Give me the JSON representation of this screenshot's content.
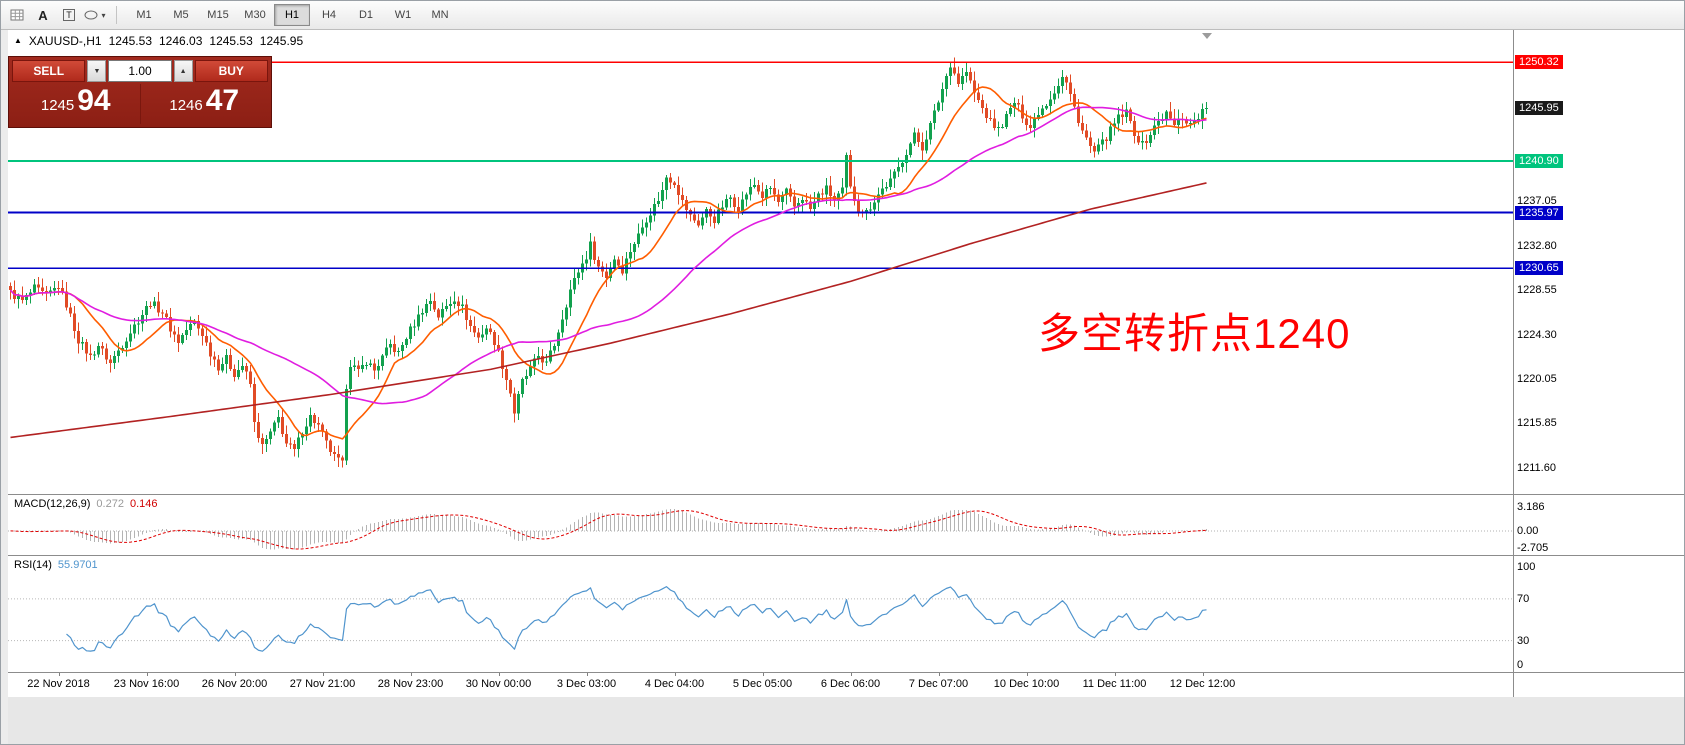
{
  "toolbar": {
    "tools": [
      {
        "name": "tick-grid",
        "glyph": ""
      },
      {
        "name": "insert-text",
        "glyph": "A"
      },
      {
        "name": "insert-label",
        "glyph": "T"
      },
      {
        "name": "shapes",
        "glyph": ""
      }
    ],
    "dropdown_glyph": "▾",
    "timeframes": [
      {
        "label": "M1"
      },
      {
        "label": "M5"
      },
      {
        "label": "M15"
      },
      {
        "label": "M30"
      },
      {
        "label": "H1"
      },
      {
        "label": "H4"
      },
      {
        "label": "D1"
      },
      {
        "label": "W1"
      },
      {
        "label": "MN"
      }
    ],
    "active_timeframe": "H1"
  },
  "chart_header": {
    "marker": "▲",
    "symbol_period": "XAUUSD-,H1",
    "open": "1245.53",
    "high": "1246.03",
    "low": "1245.53",
    "close": "1245.95"
  },
  "trade_panel": {
    "sell_label": "SELL",
    "buy_label": "BUY",
    "lot_value": "1.00",
    "spin_down_glyph": "▼",
    "spin_up_glyph": "▲",
    "bid": {
      "small": "1245",
      "big": "94"
    },
    "ask": {
      "small": "1246",
      "big": "47"
    }
  },
  "annotation": {
    "text": "多空转折点1240",
    "color": "#ff0000"
  },
  "chart_data": {
    "type": "candlestick",
    "symbol": "XAUUSD-",
    "timeframe": "H1",
    "title_ohlc": {
      "open": 1245.53,
      "high": 1246.03,
      "low": 1245.53,
      "close": 1245.95
    },
    "num_candles": 300,
    "last_close": 1245.95,
    "ylim": [
      1209.1,
      1253.4
    ],
    "up_color": "#12a14e",
    "down_color": "#e14b26",
    "close_keypoints": [
      [
        0,
        1228.3
      ],
      [
        3,
        1227.5
      ],
      [
        6,
        1228.7
      ],
      [
        9,
        1228.0
      ],
      [
        12,
        1229.0
      ],
      [
        14,
        1227.2
      ],
      [
        17,
        1223.8
      ],
      [
        20,
        1222.2
      ],
      [
        22,
        1223.3
      ],
      [
        25,
        1221.6
      ],
      [
        27,
        1222.8
      ],
      [
        30,
        1224.6
      ],
      [
        33,
        1226.3
      ],
      [
        35,
        1227.4
      ],
      [
        38,
        1226.5
      ],
      [
        40,
        1224.9
      ],
      [
        42,
        1223.7
      ],
      [
        44,
        1224.8
      ],
      [
        46,
        1225.5
      ],
      [
        48,
        1224.4
      ],
      [
        50,
        1222.6
      ],
      [
        52,
        1221.3
      ],
      [
        54,
        1222.0
      ],
      [
        56,
        1220.6
      ],
      [
        58,
        1221.4
      ],
      [
        60,
        1219.6
      ],
      [
        61,
        1215.8
      ],
      [
        63,
        1213.6
      ],
      [
        65,
        1214.9
      ],
      [
        67,
        1216.3
      ],
      [
        69,
        1213.9
      ],
      [
        71,
        1213.2
      ],
      [
        73,
        1215.2
      ],
      [
        75,
        1216.5
      ],
      [
        77,
        1215.6
      ],
      [
        79,
        1213.9
      ],
      [
        81,
        1212.6
      ],
      [
        83,
        1211.9
      ],
      [
        84,
        1219.5
      ],
      [
        85,
        1221.6
      ],
      [
        87,
        1220.7
      ],
      [
        89,
        1221.8
      ],
      [
        91,
        1220.9
      ],
      [
        93,
        1222.1
      ],
      [
        95,
        1223.3
      ],
      [
        97,
        1222.5
      ],
      [
        99,
        1224.1
      ],
      [
        101,
        1225.4
      ],
      [
        103,
        1226.7
      ],
      [
        105,
        1227.6
      ],
      [
        107,
        1226.1
      ],
      [
        109,
        1227.0
      ],
      [
        111,
        1227.8
      ],
      [
        113,
        1226.9
      ],
      [
        115,
        1225.1
      ],
      [
        117,
        1224.0
      ],
      [
        119,
        1225.0
      ],
      [
        121,
        1223.7
      ],
      [
        123,
        1221.4
      ],
      [
        125,
        1218.8
      ],
      [
        126,
        1216.9
      ],
      [
        128,
        1219.8
      ],
      [
        130,
        1221.0
      ],
      [
        132,
        1222.3
      ],
      [
        134,
        1221.5
      ],
      [
        136,
        1223.4
      ],
      [
        138,
        1226.0
      ],
      [
        140,
        1228.6
      ],
      [
        142,
        1230.4
      ],
      [
        144,
        1231.8
      ],
      [
        145,
        1232.9
      ],
      [
        147,
        1230.8
      ],
      [
        149,
        1229.9
      ],
      [
        151,
        1231.6
      ],
      [
        153,
        1230.5
      ],
      [
        155,
        1232.4
      ],
      [
        157,
        1233.8
      ],
      [
        159,
        1235.4
      ],
      [
        161,
        1236.6
      ],
      [
        163,
        1238.0
      ],
      [
        164,
        1239.4
      ],
      [
        166,
        1238.9
      ],
      [
        168,
        1237.0
      ],
      [
        170,
        1235.6
      ],
      [
        172,
        1234.9
      ],
      [
        174,
        1236.1
      ],
      [
        176,
        1235.3
      ],
      [
        178,
        1236.6
      ],
      [
        180,
        1237.4
      ],
      [
        182,
        1236.3
      ],
      [
        184,
        1237.8
      ],
      [
        186,
        1238.6
      ],
      [
        188,
        1237.5
      ],
      [
        190,
        1238.3
      ],
      [
        192,
        1236.9
      ],
      [
        194,
        1237.9
      ],
      [
        196,
        1236.5
      ],
      [
        198,
        1237.4
      ],
      [
        200,
        1236.3
      ],
      [
        202,
        1237.6
      ],
      [
        204,
        1238.2
      ],
      [
        206,
        1237.2
      ],
      [
        208,
        1238.0
      ],
      [
        209,
        1241.2
      ],
      [
        210,
        1238.2
      ],
      [
        212,
        1236.4
      ],
      [
        214,
        1236.0
      ],
      [
        216,
        1237.2
      ],
      [
        218,
        1238.2
      ],
      [
        220,
        1239.0
      ],
      [
        222,
        1240.2
      ],
      [
        224,
        1241.8
      ],
      [
        226,
        1243.3
      ],
      [
        228,
        1242.2
      ],
      [
        230,
        1244.3
      ],
      [
        232,
        1246.6
      ],
      [
        234,
        1249.0
      ],
      [
        235,
        1250.2
      ],
      [
        237,
        1248.4
      ],
      [
        239,
        1249.4
      ],
      [
        241,
        1247.4
      ],
      [
        243,
        1245.9
      ],
      [
        245,
        1244.6
      ],
      [
        247,
        1243.9
      ],
      [
        249,
        1245.1
      ],
      [
        251,
        1246.5
      ],
      [
        253,
        1245.3
      ],
      [
        255,
        1244.1
      ],
      [
        257,
        1245.6
      ],
      [
        259,
        1246.4
      ],
      [
        261,
        1247.6
      ],
      [
        263,
        1248.9
      ],
      [
        264,
        1248.3
      ],
      [
        266,
        1246.0
      ],
      [
        268,
        1243.8
      ],
      [
        270,
        1242.2
      ],
      [
        271,
        1241.7
      ],
      [
        273,
        1242.6
      ],
      [
        275,
        1243.8
      ],
      [
        277,
        1245.0
      ],
      [
        279,
        1245.5
      ],
      [
        281,
        1243.6
      ],
      [
        283,
        1242.4
      ],
      [
        285,
        1243.5
      ],
      [
        287,
        1244.7
      ],
      [
        289,
        1245.4
      ],
      [
        291,
        1244.3
      ],
      [
        293,
        1245.1
      ],
      [
        295,
        1244.4
      ],
      [
        297,
        1245.2
      ],
      [
        299,
        1245.95
      ]
    ],
    "levels": [
      {
        "value": 1250.32,
        "color": "#ff0000",
        "label": "1250.32"
      },
      {
        "value": 1240.9,
        "color": "#00c47d",
        "label": "1240.90"
      },
      {
        "value": 1235.97,
        "color": "#0000c8",
        "label": "1235.97"
      },
      {
        "value": 1230.65,
        "color": "#0000c8",
        "label": "1230.65"
      }
    ],
    "current_price_label": {
      "value": 1245.95,
      "label": "1245.95",
      "bg": "#1a1a1a"
    },
    "y_axis_labels": [
      {
        "v": 1237.05,
        "t": "1237.05"
      },
      {
        "v": 1232.8,
        "t": "1232.80"
      },
      {
        "v": 1228.55,
        "t": "1228.55"
      },
      {
        "v": 1224.3,
        "t": "1224.30"
      },
      {
        "v": 1220.05,
        "t": "1220.05"
      },
      {
        "v": 1215.85,
        "t": "1215.85"
      },
      {
        "v": 1211.6,
        "t": "1211.60"
      }
    ],
    "x_axis_labels": [
      {
        "t": "22 Nov 2018",
        "i": 12
      },
      {
        "t": "23 Nov 16:00",
        "i": 34
      },
      {
        "t": "26 Nov 20:00",
        "i": 56
      },
      {
        "t": "27 Nov 21:00",
        "i": 78
      },
      {
        "t": "28 Nov 23:00",
        "i": 100
      },
      {
        "t": "30 Nov 00:00",
        "i": 122
      },
      {
        "t": "3 Dec 03:00",
        "i": 144
      },
      {
        "t": "4 Dec 04:00",
        "i": 166
      },
      {
        "t": "5 Dec 05:00",
        "i": 188
      },
      {
        "t": "6 Dec 06:00",
        "i": 210
      },
      {
        "t": "7 Dec 07:00",
        "i": 232
      },
      {
        "t": "10 Dec 10:00",
        "i": 254
      },
      {
        "t": "11 Dec 11:00",
        "i": 276
      },
      {
        "t": "12 Dec 12:00",
        "i": 298
      }
    ],
    "moving_averages": [
      {
        "name": "ma-fast",
        "type": "sma",
        "period": 13,
        "color": "#ff5d00"
      },
      {
        "name": "ma-medium",
        "type": "sma",
        "period": 44,
        "color": "#e01de0"
      },
      {
        "name": "ma-slow",
        "type": "keypoints",
        "color": "#b22222",
        "points": [
          [
            0,
            1214.5
          ],
          [
            40,
            1216.5
          ],
          [
            80,
            1218.6
          ],
          [
            120,
            1221.0
          ],
          [
            150,
            1223.5
          ],
          [
            180,
            1226.3
          ],
          [
            210,
            1229.4
          ],
          [
            240,
            1233.0
          ],
          [
            270,
            1236.3
          ],
          [
            299,
            1238.8
          ]
        ]
      }
    ],
    "macd": {
      "name": "MACD(12,26,9)",
      "value_main": "0.272",
      "value_signal": "0.146",
      "fast": 12,
      "slow": 26,
      "signal": 9,
      "ylim": [
        -3.25,
        4.83
      ],
      "axis_labels": [
        {
          "v": 3.186,
          "t": "3.186"
        },
        {
          "v": 0,
          "t": "0.00"
        },
        {
          "v": -2.705,
          "t": "-2.705"
        }
      ],
      "hist_color": "#b4b4b4",
      "signal_color": "#e00000"
    },
    "rsi": {
      "name": "RSI(14)",
      "value": "55.9701",
      "period": 14,
      "ylim": [
        0,
        111
      ],
      "axis_labels": [
        {
          "v": 100,
          "t": "100"
        },
        {
          "v": 70,
          "t": "70"
        },
        {
          "v": 30,
          "t": "30"
        },
        {
          "v": 0,
          "t": "0"
        }
      ],
      "levels": [
        70,
        30
      ],
      "color": "#4f94cd"
    }
  }
}
